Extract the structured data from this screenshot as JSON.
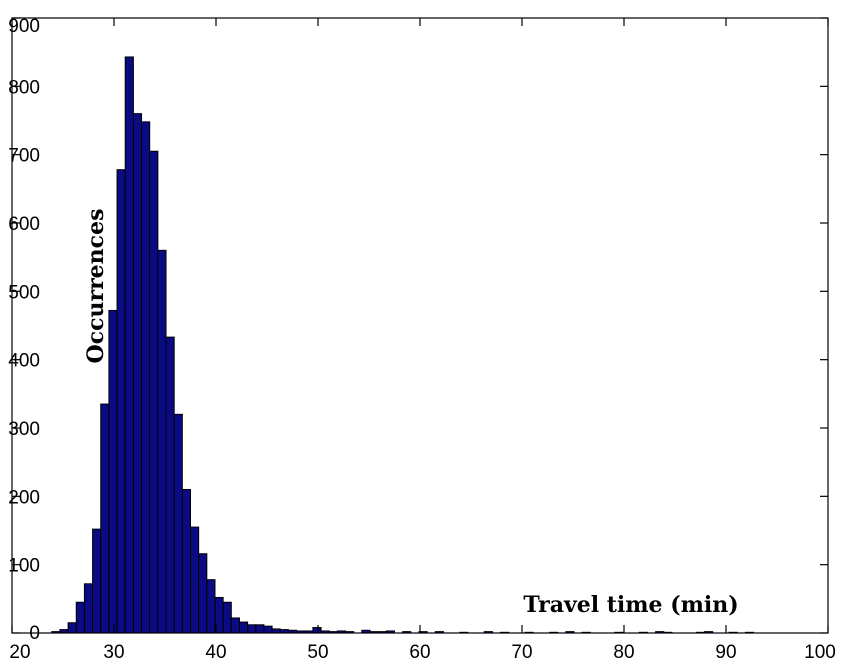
{
  "chart_data": {
    "type": "bar",
    "xlabel": "Travel time (min)",
    "ylabel": "Occurrences",
    "xlim": [
      20,
      100
    ],
    "ylim": [
      0,
      900
    ],
    "xticks": [
      20,
      30,
      40,
      50,
      60,
      70,
      80,
      90,
      100
    ],
    "yticks": [
      0,
      100,
      200,
      300,
      400,
      500,
      600,
      700,
      800,
      900
    ],
    "bin_width": 0.8,
    "colors": {
      "bar": "#0a0a82",
      "edge": "#000000"
    },
    "bins": [
      {
        "x": 24.3,
        "y": 2
      },
      {
        "x": 25.1,
        "y": 5
      },
      {
        "x": 25.9,
        "y": 15
      },
      {
        "x": 26.7,
        "y": 45
      },
      {
        "x": 27.5,
        "y": 72
      },
      {
        "x": 28.3,
        "y": 152
      },
      {
        "x": 29.1,
        "y": 335
      },
      {
        "x": 29.9,
        "y": 472
      },
      {
        "x": 30.7,
        "y": 678
      },
      {
        "x": 31.5,
        "y": 843
      },
      {
        "x": 32.3,
        "y": 760
      },
      {
        "x": 33.1,
        "y": 748
      },
      {
        "x": 33.9,
        "y": 705
      },
      {
        "x": 34.7,
        "y": 560
      },
      {
        "x": 35.5,
        "y": 433
      },
      {
        "x": 36.3,
        "y": 320
      },
      {
        "x": 37.1,
        "y": 210
      },
      {
        "x": 37.9,
        "y": 155
      },
      {
        "x": 38.7,
        "y": 116
      },
      {
        "x": 39.5,
        "y": 78
      },
      {
        "x": 40.3,
        "y": 52
      },
      {
        "x": 41.1,
        "y": 45
      },
      {
        "x": 41.9,
        "y": 22
      },
      {
        "x": 42.7,
        "y": 16
      },
      {
        "x": 43.5,
        "y": 12
      },
      {
        "x": 44.3,
        "y": 12
      },
      {
        "x": 45.1,
        "y": 10
      },
      {
        "x": 45.9,
        "y": 6
      },
      {
        "x": 46.7,
        "y": 5
      },
      {
        "x": 47.5,
        "y": 4
      },
      {
        "x": 48.3,
        "y": 3
      },
      {
        "x": 49.1,
        "y": 3
      },
      {
        "x": 49.9,
        "y": 8
      },
      {
        "x": 50.7,
        "y": 3
      },
      {
        "x": 51.5,
        "y": 2
      },
      {
        "x": 52.3,
        "y": 3
      },
      {
        "x": 53.1,
        "y": 2
      },
      {
        "x": 54.7,
        "y": 4
      },
      {
        "x": 55.5,
        "y": 2
      },
      {
        "x": 56.3,
        "y": 2
      },
      {
        "x": 57.1,
        "y": 3
      },
      {
        "x": 58.7,
        "y": 2
      },
      {
        "x": 60.3,
        "y": 2
      },
      {
        "x": 61.9,
        "y": 2
      },
      {
        "x": 64.3,
        "y": 1
      },
      {
        "x": 66.7,
        "y": 2
      },
      {
        "x": 68.3,
        "y": 1
      },
      {
        "x": 70.7,
        "y": 1
      },
      {
        "x": 73.1,
        "y": 1
      },
      {
        "x": 74.7,
        "y": 2
      },
      {
        "x": 76.3,
        "y": 1
      },
      {
        "x": 79.5,
        "y": 1
      },
      {
        "x": 81.9,
        "y": 1
      },
      {
        "x": 83.5,
        "y": 2
      },
      {
        "x": 84.3,
        "y": 1
      },
      {
        "x": 87.5,
        "y": 1
      },
      {
        "x": 88.3,
        "y": 2
      },
      {
        "x": 90.7,
        "y": 1
      },
      {
        "x": 92.3,
        "y": 1
      }
    ]
  }
}
